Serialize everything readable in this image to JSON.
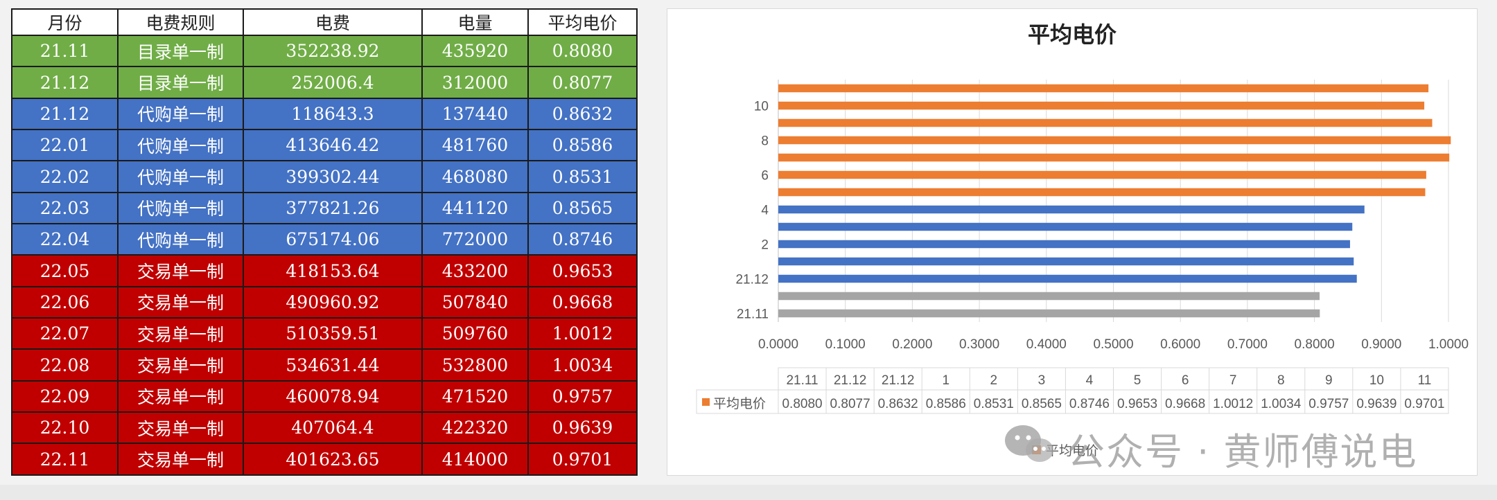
{
  "table": {
    "headers": [
      "月份",
      "电费规则",
      "电费",
      "电量",
      "平均电价"
    ],
    "rows": [
      {
        "month": "21.11",
        "rule": "目录单一制",
        "fee": "352238.92",
        "energy": "435920",
        "avg": "0.8080",
        "color": "#70ad47"
      },
      {
        "month": "21.12",
        "rule": "目录单一制",
        "fee": "252006.4",
        "energy": "312000",
        "avg": "0.8077",
        "color": "#70ad47"
      },
      {
        "month": "21.12",
        "rule": "代购单一制",
        "fee": "118643.3",
        "energy": "137440",
        "avg": "0.8632",
        "color": "#4472c4"
      },
      {
        "month": "22.01",
        "rule": "代购单一制",
        "fee": "413646.42",
        "energy": "481760",
        "avg": "0.8586",
        "color": "#4472c4"
      },
      {
        "month": "22.02",
        "rule": "代购单一制",
        "fee": "399302.44",
        "energy": "468080",
        "avg": "0.8531",
        "color": "#4472c4"
      },
      {
        "month": "22.03",
        "rule": "代购单一制",
        "fee": "377821.26",
        "energy": "441120",
        "avg": "0.8565",
        "color": "#4472c4"
      },
      {
        "month": "22.04",
        "rule": "代购单一制",
        "fee": "675174.06",
        "energy": "772000",
        "avg": "0.8746",
        "color": "#4472c4"
      },
      {
        "month": "22.05",
        "rule": "交易单一制",
        "fee": "418153.64",
        "energy": "433200",
        "avg": "0.9653",
        "color": "#c00000"
      },
      {
        "month": "22.06",
        "rule": "交易单一制",
        "fee": "490960.92",
        "energy": "507840",
        "avg": "0.9668",
        "color": "#c00000"
      },
      {
        "month": "22.07",
        "rule": "交易单一制",
        "fee": "510359.51",
        "energy": "509760",
        "avg": "1.0012",
        "color": "#c00000"
      },
      {
        "month": "22.08",
        "rule": "交易单一制",
        "fee": "534631.44",
        "energy": "532800",
        "avg": "1.0034",
        "color": "#c00000"
      },
      {
        "month": "22.09",
        "rule": "交易单一制",
        "fee": "460078.94",
        "energy": "471520",
        "avg": "0.9757",
        "color": "#c00000"
      },
      {
        "month": "22.10",
        "rule": "交易单一制",
        "fee": "407064.4",
        "energy": "422320",
        "avg": "0.9639",
        "color": "#c00000"
      },
      {
        "month": "22.11",
        "rule": "交易单一制",
        "fee": "401623.65",
        "energy": "414000",
        "avg": "0.9701",
        "color": "#c00000"
      }
    ]
  },
  "chart_data": {
    "type": "bar",
    "orientation": "horizontal",
    "title": "平均电价",
    "categories": [
      "21.11",
      "21.12",
      "21.12",
      "1",
      "2",
      "3",
      "4",
      "5",
      "6",
      "7",
      "8",
      "9",
      "10",
      "11"
    ],
    "y_tick_labels_shown": [
      "21.11",
      "21.12",
      "2",
      "4",
      "6",
      "8",
      "10"
    ],
    "series": [
      {
        "name": "平均电价",
        "values": [
          0.808,
          0.8077,
          0.8632,
          0.8586,
          0.8531,
          0.8565,
          0.8746,
          0.9653,
          0.9668,
          1.0012,
          1.0034,
          0.9757,
          0.9639,
          0.9701
        ],
        "display_values": [
          "0.8080",
          "0.8077",
          "0.8632",
          "0.8586",
          "0.8531",
          "0.8565",
          "0.8746",
          "0.9653",
          "0.9668",
          "1.0012",
          "1.0034",
          "0.9757",
          "0.9639",
          "0.9701"
        ],
        "bar_colors": [
          "#a5a5a5",
          "#a5a5a5",
          "#4472c4",
          "#4472c4",
          "#4472c4",
          "#4472c4",
          "#4472c4",
          "#ed7d31",
          "#ed7d31",
          "#ed7d31",
          "#ed7d31",
          "#ed7d31",
          "#ed7d31",
          "#ed7d31"
        ]
      }
    ],
    "x_ticks": [
      "0.0000",
      "0.1000",
      "0.2000",
      "0.3000",
      "0.4000",
      "0.5000",
      "0.6000",
      "0.7000",
      "0.8000",
      "0.9000",
      "1.0000"
    ],
    "xlim": [
      0,
      1.0
    ],
    "grid": "vertical",
    "data_table": true,
    "legend": {
      "label": "平均电价",
      "color": "#ed7d31",
      "position": "bottom"
    }
  },
  "watermark": {
    "text": "公众号 · 黄师傅说电"
  }
}
